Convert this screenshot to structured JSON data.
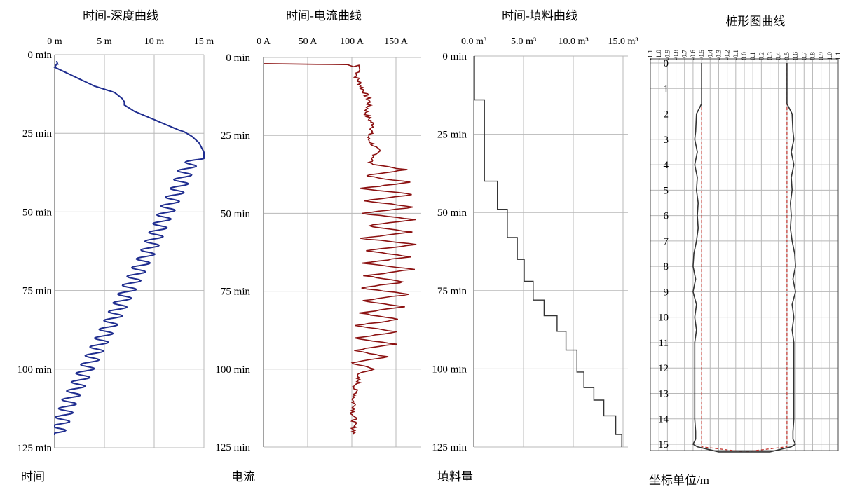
{
  "chart_data": [
    {
      "type": "line",
      "title": "时间-深度曲线",
      "xlabel": "",
      "ylabel": "时间",
      "x_ticks": [
        "0 m",
        "5 m",
        "10 m",
        "15 m"
      ],
      "y_ticks": [
        "0 min",
        "25 min",
        "50 min",
        "75 min",
        "100 min",
        "125 min"
      ],
      "xlim": [
        0,
        15
      ],
      "ylim": [
        0,
        125
      ],
      "series": [
        {
          "color": "#1f2d8f",
          "points": [
            [
              0.2,
              2
            ],
            [
              0.3,
              3
            ],
            [
              0.2,
              3
            ],
            [
              0,
              4
            ],
            [
              2,
              7
            ],
            [
              4,
              10
            ],
            [
              6,
              12
            ],
            [
              6.8,
              14
            ],
            [
              7,
              15
            ],
            [
              7,
              16
            ],
            [
              8,
              18
            ],
            [
              9.5,
              20
            ],
            [
              11,
              22
            ],
            [
              12.5,
              24
            ],
            [
              13,
              24.5
            ],
            [
              13.8,
              26
            ],
            [
              14.5,
              28
            ],
            [
              15,
              31
            ],
            [
              15,
              32
            ],
            [
              13.5,
              35
            ],
            [
              13,
              38
            ],
            [
              12.5,
              42
            ],
            [
              11.5,
              48
            ],
            [
              10.5,
              55
            ],
            [
              9.5,
              62
            ],
            [
              8.5,
              68
            ],
            [
              7.5,
              74
            ],
            [
              6.5,
              80
            ],
            [
              5.5,
              86
            ],
            [
              4.5,
              92
            ],
            [
              3.5,
              98
            ],
            [
              2.5,
              104
            ],
            [
              1.5,
              110
            ],
            [
              0.8,
              116
            ],
            [
              0.1,
              121
            ]
          ],
          "oscillation": {
            "start_y": 32,
            "amplitude_m": 0.8,
            "period_min": 2.8
          }
        }
      ]
    },
    {
      "type": "line",
      "title": "时间-电流曲线",
      "xlabel": "",
      "ylabel": "电流",
      "x_ticks": [
        "0 A",
        "50 A",
        "100 A",
        "150 A"
      ],
      "y_ticks": [
        "0 min",
        "25 min",
        "50 min",
        "75 min",
        "100 min",
        "125 min"
      ],
      "xlim": [
        0,
        180
      ],
      "ylim": [
        0,
        125
      ],
      "series": [
        {
          "color": "#8b1010",
          "points": [
            [
              0,
              2
            ],
            [
              60,
              2.2
            ],
            [
              95,
              2.3
            ],
            [
              102,
              3
            ],
            [
              108,
              2.5
            ],
            [
              109,
              4
            ],
            [
              105,
              6
            ],
            [
              112,
              10
            ],
            [
              120,
              14
            ],
            [
              116,
              18
            ],
            [
              125,
              22
            ],
            [
              118,
              26
            ],
            [
              130,
              30
            ],
            [
              120,
              34
            ],
            [
              160,
              36
            ],
            [
              115,
              38
            ],
            [
              165,
              40
            ],
            [
              112,
              42
            ],
            [
              170,
              44
            ],
            [
              115,
              46
            ],
            [
              172,
              48
            ],
            [
              112,
              50
            ],
            [
              170,
              52
            ],
            [
              118,
              54
            ],
            [
              168,
              56
            ],
            [
              110,
              58
            ],
            [
              172,
              60
            ],
            [
              115,
              62
            ],
            [
              165,
              64
            ],
            [
              112,
              66
            ],
            [
              170,
              68
            ],
            [
              115,
              70
            ],
            [
              160,
              72
            ],
            [
              110,
              74
            ],
            [
              165,
              76
            ],
            [
              112,
              78
            ],
            [
              160,
              80
            ],
            [
              108,
              82
            ],
            [
              155,
              84
            ],
            [
              105,
              86
            ],
            [
              150,
              88
            ],
            [
              104,
              90
            ],
            [
              148,
              92
            ],
            [
              102,
              94
            ],
            [
              140,
              96
            ],
            [
              100,
              98
            ],
            [
              125,
              100
            ],
            [
              104,
              102
            ],
            [
              108,
              104
            ],
            [
              103,
              106
            ],
            [
              105,
              108
            ],
            [
              101,
              110
            ],
            [
              104,
              112
            ],
            [
              101,
              114
            ],
            [
              103,
              116
            ],
            [
              102,
              118
            ],
            [
              103,
              120
            ],
            [
              102,
              121
            ]
          ]
        }
      ]
    },
    {
      "type": "line",
      "title": "时间-填料曲线",
      "xlabel": "",
      "ylabel": "填料量",
      "x_ticks": [
        "0.0 m³",
        "5.0 m³",
        "10.0 m³",
        "15.0 m³"
      ],
      "y_ticks": [
        "0 min",
        "25 min",
        "50 min",
        "75 min",
        "100 min",
        "125 min"
      ],
      "xlim": [
        0,
        15
      ],
      "ylim": [
        0,
        125
      ],
      "series": [
        {
          "color": "#333333",
          "step_y": [
            0,
            14,
            40,
            49,
            58,
            65,
            72,
            78,
            83,
            88,
            94,
            101,
            106,
            110,
            115,
            121
          ],
          "step_x": [
            0,
            1,
            2.3,
            3.3,
            4.3,
            5,
            5.9,
            7,
            8.3,
            9.2,
            10.3,
            11,
            12,
            13,
            14.2,
            14.8
          ]
        }
      ]
    },
    {
      "type": "line",
      "title": "桩形图曲线",
      "xlabel": "坐标单位/m",
      "ylabel": "",
      "x_ticks": [
        "-1.1",
        "-1.0",
        "-0.9",
        "-0.8",
        "-0.7",
        "-0.6",
        "-0.5",
        "-0.4",
        "-0.3",
        "-0.2",
        "-0.1",
        "0.0",
        "0.1",
        "0.2",
        "0.3",
        "0.4",
        "0.5",
        "0.6",
        "0.7",
        "0.8",
        "0.9",
        "1.0",
        "1.1"
      ],
      "y_ticks": [
        "0",
        "1",
        "2",
        "3",
        "4",
        "5",
        "6",
        "7",
        "8",
        "9",
        "10",
        "11",
        "12",
        "13",
        "14",
        "15"
      ],
      "xlim": [
        -1.1,
        1.1
      ],
      "ylim": [
        0,
        15.3
      ],
      "series": [
        {
          "color": "#333333",
          "outline_depth": [
            0,
            1,
            1.6,
            2,
            2.7,
            3,
            3.5,
            4,
            4.5,
            5,
            5.5,
            6,
            6.5,
            7,
            7.5,
            8,
            8.5,
            9,
            9.5,
            10,
            10.5,
            11,
            11.5,
            12,
            12.5,
            13,
            13.5,
            14,
            14.5,
            14.8,
            15,
            15.1,
            15.3
          ],
          "outline_halfwidth": [
            0.5,
            0.5,
            0.5,
            0.56,
            0.57,
            0.58,
            0.55,
            0.58,
            0.55,
            0.56,
            0.54,
            0.55,
            0.54,
            0.56,
            0.59,
            0.6,
            0.57,
            0.6,
            0.56,
            0.58,
            0.56,
            0.58,
            0.58,
            0.58,
            0.58,
            0.58,
            0.58,
            0.58,
            0.57,
            0.57,
            0.6,
            0.55,
            0.3
          ]
        },
        {
          "color": "#c0302a",
          "dashed": true,
          "design_halfwidth": 0.5
        }
      ]
    }
  ]
}
